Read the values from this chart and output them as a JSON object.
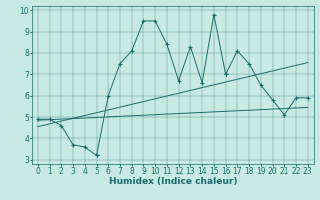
{
  "xlabel": "Humidex (Indice chaleur)",
  "xlim": [
    -0.5,
    23.5
  ],
  "ylim": [
    2.8,
    10.2
  ],
  "xticks": [
    0,
    1,
    2,
    3,
    4,
    5,
    6,
    7,
    8,
    9,
    10,
    11,
    12,
    13,
    14,
    15,
    16,
    17,
    18,
    19,
    20,
    21,
    22,
    23
  ],
  "yticks": [
    3,
    4,
    5,
    6,
    7,
    8,
    9,
    10
  ],
  "bg_color": "#c8eae5",
  "line_color": "#1a6b6b",
  "main_x": [
    0,
    1,
    2,
    3,
    4,
    5,
    5,
    6,
    7,
    8,
    9,
    10,
    11,
    12,
    13,
    14,
    15,
    16,
    16,
    17,
    18,
    19,
    20,
    21,
    22,
    23
  ],
  "main_y": [
    4.9,
    4.9,
    4.6,
    3.7,
    3.6,
    3.2,
    3.2,
    6.0,
    7.5,
    8.1,
    9.5,
    9.5,
    8.4,
    6.7,
    8.3,
    6.6,
    9.8,
    7.0,
    7.0,
    8.1,
    7.5,
    6.5,
    5.8,
    5.1,
    5.9,
    5.9
  ],
  "trend1_x": [
    0,
    23
  ],
  "trend1_y": [
    4.85,
    5.45
  ],
  "trend2_x": [
    0,
    23
  ],
  "trend2_y": [
    4.55,
    7.55
  ],
  "xlabel_fontsize": 6.5,
  "tick_fontsize": 5.5
}
